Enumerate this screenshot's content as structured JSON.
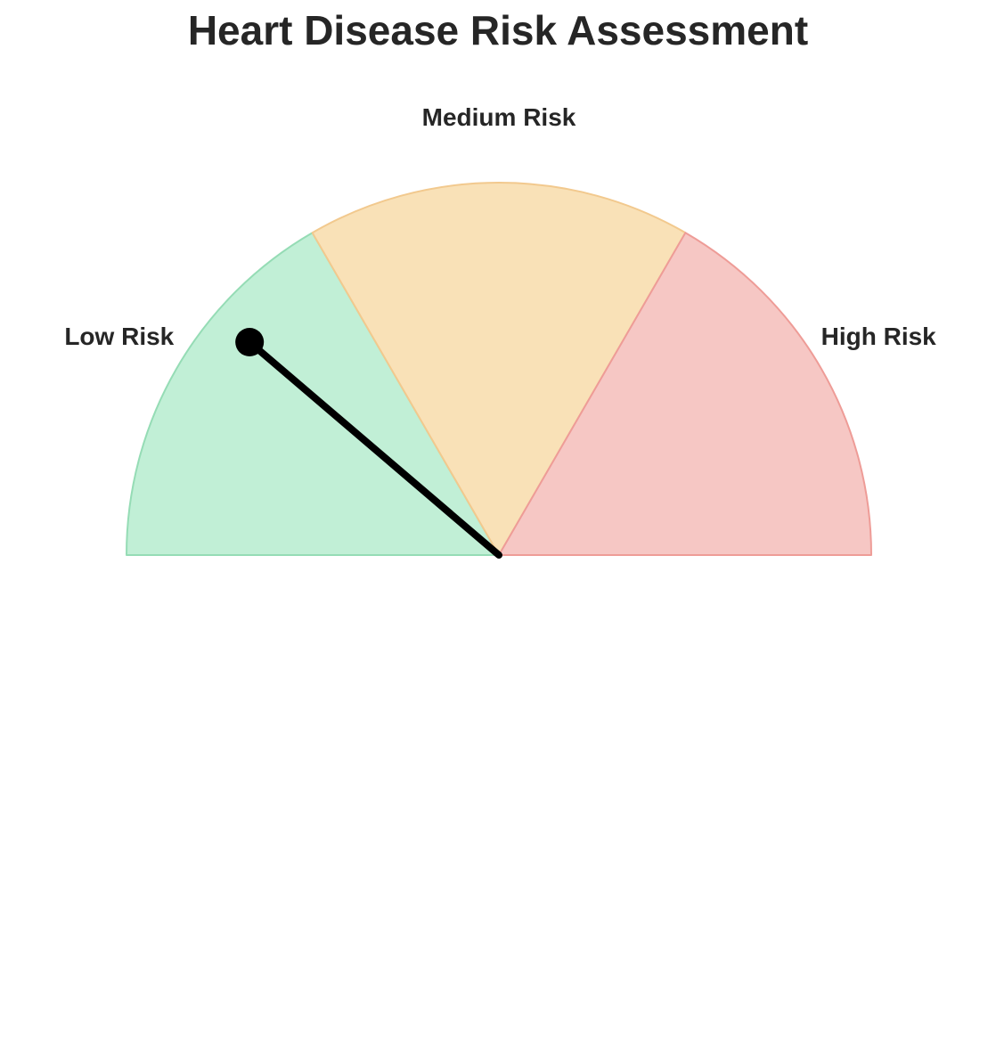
{
  "chart_data": {
    "type": "gauge",
    "title": "Heart Disease Risk Assessment",
    "range": [
      0,
      100
    ],
    "zones": [
      {
        "name": "Low Risk",
        "from": 0,
        "to": 33.3,
        "fill": "#c1efd6",
        "stroke": "#95dcb5"
      },
      {
        "name": "Medium Risk",
        "from": 33.3,
        "to": 66.7,
        "fill": "#f9e1b7",
        "stroke": "#f2c98e"
      },
      {
        "name": "High Risk",
        "from": 66.7,
        "to": 100,
        "fill": "#f6c7c4",
        "stroke": "#ee9c97"
      }
    ],
    "needle_value": 22.5,
    "needle_color": "#000000",
    "legend": "none",
    "grid": false
  }
}
